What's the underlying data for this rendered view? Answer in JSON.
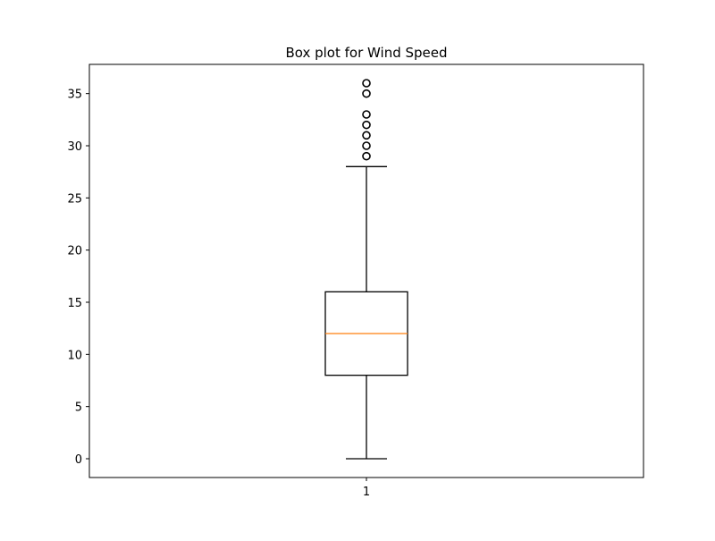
{
  "chart_data": {
    "type": "box",
    "title": "Box plot for Wind Speed",
    "xlabel": "",
    "ylabel": "",
    "categories": [
      "1"
    ],
    "ylim": [
      -1.8,
      37.8
    ],
    "yticks": [
      0,
      5,
      10,
      15,
      20,
      25,
      30,
      35
    ],
    "grid": false,
    "boxes": [
      {
        "category": "1",
        "whisker_low": 0,
        "q1": 8,
        "median": 12,
        "q3": 16,
        "whisker_high": 28,
        "outliers": [
          29,
          30,
          31,
          32,
          33,
          35,
          36
        ]
      }
    ]
  },
  "colors": {
    "box": "#000000",
    "median": "#ff7f0e",
    "flier": "#000000"
  }
}
